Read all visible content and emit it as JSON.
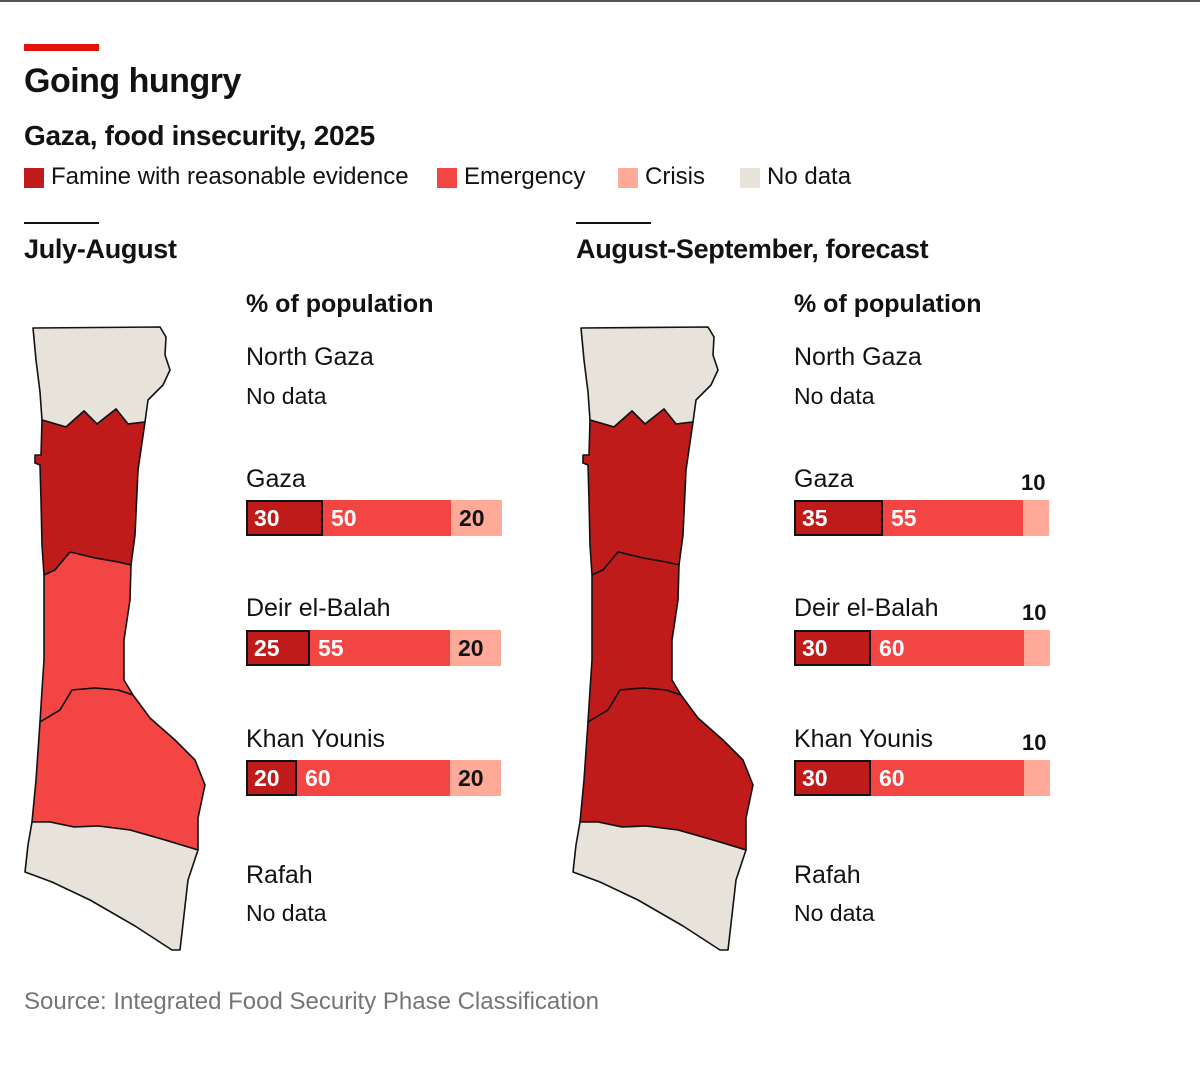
{
  "header": {
    "title": "Going hungry",
    "subtitle": "Gaza, food insecurity, 2025"
  },
  "colors": {
    "accent": "#e3120b",
    "famine": "#bf1b1b",
    "emergency": "#f44545",
    "crisis": "#ffaa99",
    "no_data": "#e7e3da",
    "outline": "#121212"
  },
  "legend": [
    {
      "label": "Famine with reasonable evidence",
      "color": "#bf1b1b"
    },
    {
      "label": "Emergency",
      "color": "#f44545"
    },
    {
      "label": "Crisis",
      "color": "#ffaa99"
    },
    {
      "label": "No data",
      "color": "#e7e3da"
    }
  ],
  "source": "Source: Integrated Food Security Phase Classification",
  "chart_data": [
    {
      "type": "bar",
      "stacked": true,
      "title": "July-August",
      "ylabel": "% of population",
      "categories": [
        "North Gaza",
        "Gaza",
        "Deir el-Balah",
        "Khan Younis",
        "Rafah"
      ],
      "series": [
        {
          "name": "Famine with reasonable evidence",
          "values": [
            null,
            30,
            25,
            20,
            null
          ]
        },
        {
          "name": "Emergency",
          "values": [
            null,
            50,
            55,
            60,
            null
          ]
        },
        {
          "name": "Crisis",
          "values": [
            null,
            20,
            20,
            20,
            null
          ]
        }
      ],
      "no_data_label": "No data",
      "map_colors": {
        "North Gaza": "No data",
        "Gaza": "Famine with reasonable evidence",
        "Deir el-Balah": "Emergency",
        "Khan Younis": "Emergency",
        "Rafah": "No data"
      }
    },
    {
      "type": "bar",
      "stacked": true,
      "title": "August-September, forecast",
      "ylabel": "% of population",
      "categories": [
        "North Gaza",
        "Gaza",
        "Deir el-Balah",
        "Khan Younis",
        "Rafah"
      ],
      "series": [
        {
          "name": "Famine with reasonable evidence",
          "values": [
            null,
            35,
            30,
            30,
            null
          ]
        },
        {
          "name": "Emergency",
          "values": [
            null,
            55,
            60,
            60,
            null
          ]
        },
        {
          "name": "Crisis",
          "values": [
            null,
            10,
            10,
            10,
            null
          ]
        }
      ],
      "no_data_label": "No data",
      "map_colors": {
        "North Gaza": "No data",
        "Gaza": "Famine with reasonable evidence",
        "Deir el-Balah": "Famine with reasonable evidence",
        "Khan Younis": "Famine with reasonable evidence",
        "Rafah": "No data"
      }
    }
  ]
}
